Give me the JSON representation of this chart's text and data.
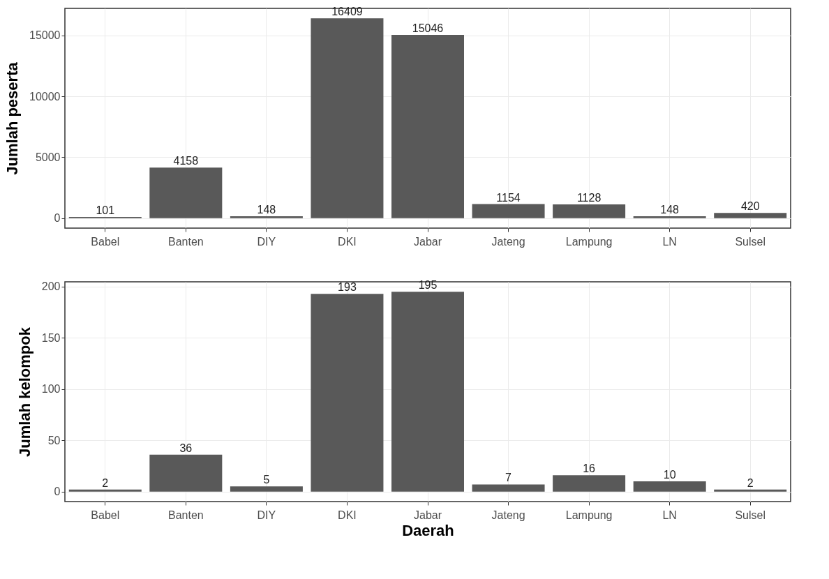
{
  "chart_data": [
    {
      "type": "bar",
      "ylabel": "Jumlah peserta",
      "categories": [
        "Babel",
        "Banten",
        "DIY",
        "DKI",
        "Jabar",
        "Jateng",
        "Lampung",
        "LN",
        "Sulsel"
      ],
      "values": [
        101,
        4158,
        148,
        16409,
        15046,
        1154,
        1128,
        148,
        420
      ],
      "color": "#595959",
      "ylim": [
        -820,
        17230
      ],
      "yticks": [
        0,
        5000,
        10000,
        15000
      ],
      "grid": true,
      "data_labels": true
    },
    {
      "type": "bar",
      "xlabel": "Daerah",
      "ylabel": "Jumlah kelompok",
      "categories": [
        "Babel",
        "Banten",
        "DIY",
        "DKI",
        "Jabar",
        "Jateng",
        "Lampung",
        "LN",
        "Sulsel"
      ],
      "values": [
        2,
        36,
        5,
        193,
        195,
        7,
        16,
        10,
        2
      ],
      "color": "#595959",
      "ylim": [
        -9.75,
        204.75
      ],
      "yticks": [
        0,
        50,
        100,
        150,
        200
      ],
      "grid": true,
      "data_labels": true
    }
  ]
}
